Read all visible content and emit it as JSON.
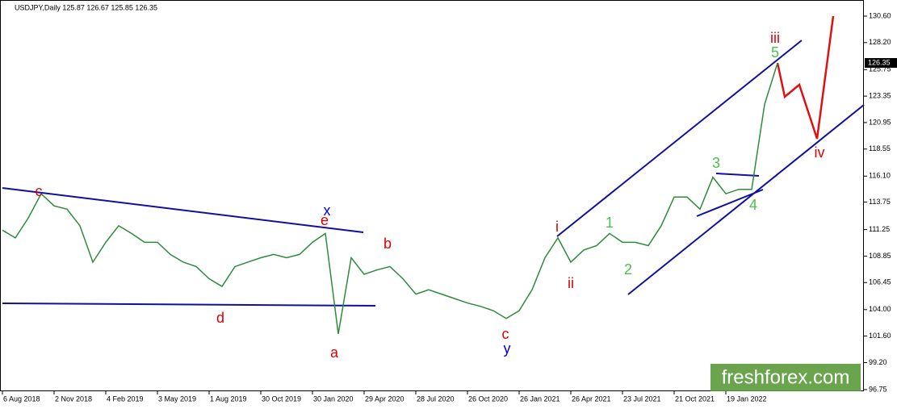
{
  "chart_data": {
    "type": "line",
    "title": "USDJPY,Daily  125.87 126.67 125.85 126.35",
    "watermark": "freshforex.com",
    "last_price": 126.35,
    "categories": [
      "6 Aug 2018",
      null,
      null,
      null,
      "2 Nov 2018",
      null,
      null,
      null,
      "4 Feb 2019",
      null,
      null,
      null,
      "3 May 2019",
      null,
      null,
      null,
      "1 Aug 2019",
      null,
      null,
      null,
      "30 Oct 2019",
      null,
      null,
      null,
      "30 Jan 2020",
      null,
      null,
      null,
      "29 Apr 2020",
      null,
      null,
      null,
      "28 Jul 2020",
      null,
      null,
      null,
      "26 Oct 2020",
      null,
      null,
      null,
      "26 Jan 2021",
      null,
      null,
      null,
      "26 Apr 2021",
      null,
      null,
      null,
      "23 Jul 2021",
      null,
      null,
      null,
      "21 Oct 2021",
      null,
      null,
      null,
      "19 Jan 2022",
      null,
      null,
      null,
      null
    ],
    "series": [
      {
        "name": "USDJPY",
        "color": "#2e8b3a",
        "values": [
          111.2,
          110.5,
          112.3,
          114.5,
          113.4,
          113.1,
          111.6,
          108.3,
          110.1,
          111.6,
          110.9,
          110.1,
          110.1,
          109.0,
          108.3,
          107.9,
          106.8,
          106.1,
          107.9,
          108.3,
          108.7,
          109.0,
          108.7,
          109.0,
          110.1,
          110.9,
          101.8,
          108.7,
          107.2,
          107.6,
          107.9,
          106.8,
          105.4,
          105.8,
          105.4,
          105.0,
          104.6,
          104.3,
          103.9,
          103.2,
          103.9,
          105.8,
          108.7,
          110.5,
          108.3,
          109.4,
          109.8,
          110.9,
          110.1,
          110.1,
          109.8,
          111.6,
          114.2,
          114.2,
          113.1,
          116.0,
          114.5,
          114.9,
          114.9,
          122.6,
          126.35
        ]
      }
    ],
    "ylim": [
      96.6,
      132.06
    ],
    "yticks": [
      {
        "value": 130.6,
        "label": "130.60"
      },
      {
        "value": 128.2,
        "label": "128.20"
      },
      {
        "value": 125.75,
        "label": "125.75"
      },
      {
        "value": 123.35,
        "label": "123.35"
      },
      {
        "value": 120.95,
        "label": "120.95"
      },
      {
        "value": 118.55,
        "label": "118.55"
      },
      {
        "value": 116.1,
        "label": "116.10"
      },
      {
        "value": 113.75,
        "label": "113.75"
      },
      {
        "value": 111.25,
        "label": "111.25"
      },
      {
        "value": 108.85,
        "label": "108.85"
      },
      {
        "value": 106.45,
        "label": "106.45"
      },
      {
        "value": 104.0,
        "label": "104.00"
      },
      {
        "value": 101.6,
        "label": "101.60"
      },
      {
        "value": 99.2,
        "label": "99.20"
      },
      {
        "value": 96.75,
        "label": "96.75"
      }
    ],
    "annotations": [
      {
        "text": "c",
        "color": "#e00000"
      },
      {
        "text": "x",
        "color": "#0000e0"
      },
      {
        "text": "e",
        "color": "#e00000"
      },
      {
        "text": "d",
        "color": "#e00000"
      },
      {
        "text": "a",
        "color": "#e00000"
      },
      {
        "text": "b",
        "color": "#e00000"
      },
      {
        "text": "c",
        "color": "#e00000"
      },
      {
        "text": "y",
        "color": "#0000e0"
      },
      {
        "text": "i",
        "color": "#e00000"
      },
      {
        "text": "ii",
        "color": "#e00000"
      },
      {
        "text": "1",
        "color": "#4cc04c"
      },
      {
        "text": "2",
        "color": "#4cc04c"
      },
      {
        "text": "3",
        "color": "#4cc04c"
      },
      {
        "text": "4",
        "color": "#4cc04c"
      },
      {
        "text": "iii",
        "color": "#e00000"
      },
      {
        "text": "5",
        "color": "#4cc04c"
      },
      {
        "text": "iv",
        "color": "#e00000"
      }
    ]
  }
}
